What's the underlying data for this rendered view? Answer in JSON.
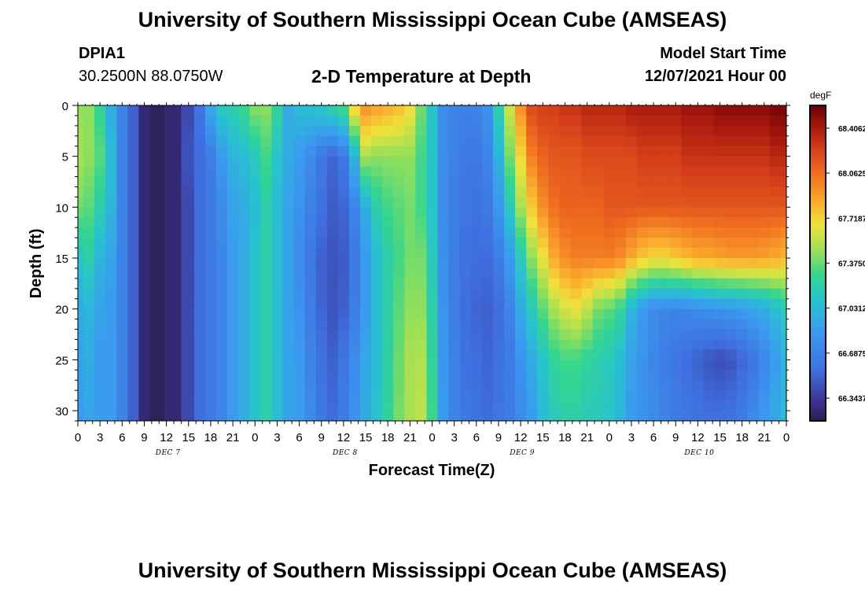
{
  "header": {
    "title": "University of Southern Mississippi Ocean Cube (AMSEAS)",
    "station": "DPIA1",
    "location": "30.2500N  88.0750W",
    "plot_title": "2-D Temperature at Depth",
    "model_start_label": "Model Start Time",
    "model_start_value": "12/07/2021 Hour 00"
  },
  "footer": {
    "title": "University of Southern Mississippi Ocean Cube (AMSEAS)"
  },
  "chart_data": {
    "type": "heatmap",
    "title": "2-D Temperature at Depth",
    "xlabel": "Forecast Time(Z)",
    "ylabel": "Depth (ft)",
    "x_tick_labels": [
      "0",
      "3",
      "6",
      "9",
      "12",
      "15",
      "18",
      "21",
      "0",
      "3",
      "6",
      "9",
      "12",
      "15",
      "18",
      "21",
      "0",
      "3",
      "6",
      "9",
      "12",
      "15",
      "18",
      "21",
      "0",
      "3",
      "6",
      "9",
      "12",
      "15",
      "18",
      "21",
      "0"
    ],
    "day_labels": [
      "DEC 7",
      "DEC 8",
      "DEC 9",
      "DEC 10"
    ],
    "y_tick_labels": [
      "0",
      "5",
      "10",
      "15",
      "20",
      "25",
      "30"
    ],
    "ylim": [
      0,
      31
    ],
    "x_range_hours": [
      0,
      96
    ],
    "colorbar": {
      "unit": "degF",
      "min": 66.17,
      "max": 68.58,
      "tick_labels": [
        "68.4062",
        "68.0625",
        "67.7187",
        "67.3750",
        "67.0312",
        "66.6875",
        "66.3437"
      ],
      "tick_values": [
        68.4062,
        68.0625,
        67.7187,
        67.375,
        67.0312,
        66.6875,
        66.3437
      ]
    },
    "depth_levels_ft": [
      0,
      5,
      10,
      15,
      20,
      25,
      31
    ],
    "profiles": [
      {
        "hour": 0,
        "values": [
          67.45,
          67.5,
          67.4,
          67.1,
          66.95,
          66.9,
          66.85
        ]
      },
      {
        "hour": 1.5,
        "values": [
          67.45,
          67.45,
          67.35,
          67.2,
          67.0,
          66.95,
          66.9
        ]
      },
      {
        "hour": 3,
        "values": [
          67.25,
          67.35,
          67.2,
          67.0,
          66.9,
          66.85,
          66.85
        ]
      },
      {
        "hour": 4.5,
        "values": [
          66.95,
          67.05,
          67.0,
          66.9,
          66.85,
          66.85,
          66.85
        ]
      },
      {
        "hour": 6,
        "values": [
          66.7,
          66.7,
          66.7,
          66.7,
          66.7,
          66.7,
          66.7
        ]
      },
      {
        "hour": 7.5,
        "values": [
          66.5,
          66.5,
          66.5,
          66.5,
          66.5,
          66.5,
          66.5
        ]
      },
      {
        "hour": 9,
        "values": [
          66.25,
          66.25,
          66.25,
          66.25,
          66.25,
          66.25,
          66.25
        ]
      },
      {
        "hour": 10.5,
        "values": [
          66.2,
          66.2,
          66.2,
          66.2,
          66.2,
          66.2,
          66.2
        ]
      },
      {
        "hour": 13,
        "values": [
          66.25,
          66.25,
          66.25,
          66.25,
          66.25,
          66.25,
          66.25
        ]
      },
      {
        "hour": 15,
        "values": [
          66.4,
          66.45,
          66.4,
          66.4,
          66.4,
          66.4,
          66.4
        ]
      },
      {
        "hour": 16.5,
        "values": [
          66.6,
          66.55,
          66.55,
          66.55,
          66.55,
          66.55,
          66.55
        ]
      },
      {
        "hour": 18,
        "values": [
          66.95,
          66.65,
          66.62,
          66.62,
          66.62,
          66.62,
          66.62
        ]
      },
      {
        "hour": 19.5,
        "values": [
          67.15,
          66.85,
          66.75,
          66.72,
          66.72,
          66.72,
          66.72
        ]
      },
      {
        "hour": 21,
        "values": [
          67.2,
          67.0,
          66.9,
          66.85,
          66.85,
          66.85,
          66.85
        ]
      },
      {
        "hour": 22.5,
        "values": [
          67.3,
          67.05,
          66.95,
          66.95,
          66.95,
          66.95,
          66.95
        ]
      },
      {
        "hour": 24,
        "values": [
          67.45,
          67.15,
          67.05,
          67.1,
          67.1,
          67.1,
          67.1
        ]
      },
      {
        "hour": 25.5,
        "values": [
          67.45,
          67.3,
          67.2,
          67.2,
          67.2,
          67.2,
          67.2
        ]
      },
      {
        "hour": 27,
        "values": [
          67.25,
          67.1,
          67.05,
          67.05,
          67.05,
          67.05,
          67.05
        ]
      },
      {
        "hour": 28.5,
        "values": [
          66.95,
          66.95,
          66.9,
          66.9,
          66.9,
          66.9,
          66.9
        ]
      },
      {
        "hour": 30,
        "values": [
          67.05,
          66.85,
          66.8,
          66.75,
          66.8,
          66.85,
          66.85
        ]
      },
      {
        "hour": 31.5,
        "values": [
          67.1,
          66.75,
          66.68,
          66.62,
          66.65,
          66.7,
          66.75
        ]
      },
      {
        "hour": 33,
        "values": [
          67.15,
          66.62,
          66.58,
          66.5,
          66.52,
          66.58,
          66.62
        ]
      },
      {
        "hour": 34.5,
        "values": [
          67.25,
          66.52,
          66.48,
          66.45,
          66.45,
          66.5,
          66.55
        ]
      },
      {
        "hour": 36,
        "values": [
          67.35,
          66.62,
          66.52,
          66.48,
          66.5,
          66.6,
          66.65
        ]
      },
      {
        "hour": 37.5,
        "values": [
          67.75,
          67.0,
          66.7,
          66.62,
          66.65,
          66.75,
          66.8
        ]
      },
      {
        "hour": 39,
        "values": [
          67.95,
          67.5,
          66.95,
          66.85,
          66.85,
          66.92,
          66.95
        ]
      },
      {
        "hour": 40.5,
        "values": [
          67.9,
          67.45,
          67.2,
          67.05,
          67.05,
          67.05,
          67.1
        ]
      },
      {
        "hour": 42,
        "values": [
          67.85,
          67.45,
          67.3,
          67.2,
          67.2,
          67.22,
          67.25
        ]
      },
      {
        "hour": 43.5,
        "values": [
          67.8,
          67.45,
          67.35,
          67.3,
          67.35,
          67.38,
          67.4
        ]
      },
      {
        "hour": 45,
        "values": [
          67.7,
          67.45,
          67.4,
          67.4,
          67.45,
          67.5,
          67.5
        ]
      },
      {
        "hour": 46.5,
        "values": [
          67.4,
          67.3,
          67.3,
          67.4,
          67.45,
          67.52,
          67.55
        ]
      },
      {
        "hour": 48,
        "values": [
          67.1,
          67.1,
          67.1,
          67.15,
          67.2,
          67.25,
          67.3
        ]
      },
      {
        "hour": 49.5,
        "values": [
          66.75,
          66.75,
          66.75,
          66.78,
          66.8,
          66.82,
          66.85
        ]
      },
      {
        "hour": 51,
        "values": [
          66.7,
          66.68,
          66.65,
          66.65,
          66.65,
          66.68,
          66.7
        ]
      },
      {
        "hour": 52.5,
        "values": [
          66.68,
          66.62,
          66.6,
          66.58,
          66.55,
          66.58,
          66.62
        ]
      },
      {
        "hour": 54,
        "values": [
          66.7,
          66.62,
          66.58,
          66.55,
          66.52,
          66.55,
          66.58
        ]
      },
      {
        "hour": 55.5,
        "values": [
          66.8,
          66.7,
          66.62,
          66.55,
          66.5,
          66.52,
          66.55
        ]
      },
      {
        "hour": 57,
        "values": [
          67.2,
          67.0,
          66.82,
          66.65,
          66.55,
          66.58,
          66.6
        ]
      },
      {
        "hour": 58.5,
        "values": [
          67.6,
          67.4,
          67.15,
          66.85,
          66.7,
          66.62,
          66.65
        ]
      },
      {
        "hour": 60,
        "values": [
          67.95,
          67.7,
          67.5,
          67.15,
          66.95,
          66.8,
          66.75
        ]
      },
      {
        "hour": 61.5,
        "values": [
          68.2,
          68.0,
          67.75,
          67.45,
          67.15,
          66.95,
          66.85
        ]
      },
      {
        "hour": 63,
        "values": [
          68.25,
          68.1,
          67.95,
          67.65,
          67.35,
          67.1,
          67.05
        ]
      },
      {
        "hour": 64.5,
        "values": [
          68.25,
          68.15,
          68.05,
          67.85,
          67.5,
          67.25,
          67.15
        ]
      },
      {
        "hour": 66,
        "values": [
          68.3,
          68.15,
          68.1,
          67.95,
          67.6,
          67.3,
          67.2
        ]
      },
      {
        "hour": 67.5,
        "values": [
          68.3,
          68.15,
          68.1,
          68.0,
          67.65,
          67.3,
          67.2
        ]
      },
      {
        "hour": 69,
        "values": [
          68.35,
          68.2,
          68.1,
          68.0,
          67.55,
          67.25,
          67.15
        ]
      },
      {
        "hour": 70.5,
        "values": [
          68.35,
          68.2,
          68.1,
          68.0,
          67.4,
          67.2,
          67.15
        ]
      },
      {
        "hour": 72,
        "values": [
          68.35,
          68.2,
          68.15,
          68.0,
          67.35,
          67.15,
          67.1
        ]
      },
      {
        "hour": 73.5,
        "values": [
          68.35,
          68.2,
          68.15,
          67.95,
          67.25,
          67.05,
          67.0
        ]
      },
      {
        "hour": 75,
        "values": [
          68.4,
          68.2,
          68.15,
          67.85,
          67.0,
          66.9,
          66.85
        ]
      },
      {
        "hour": 76.5,
        "values": [
          68.4,
          68.25,
          68.15,
          67.75,
          66.85,
          66.8,
          66.8
        ]
      },
      {
        "hour": 78,
        "values": [
          68.4,
          68.25,
          68.15,
          67.7,
          66.75,
          66.72,
          66.75
        ]
      },
      {
        "hour": 79.5,
        "values": [
          68.4,
          68.25,
          68.15,
          67.7,
          66.72,
          66.65,
          66.7
        ]
      },
      {
        "hour": 81,
        "values": [
          68.4,
          68.25,
          68.15,
          67.75,
          66.7,
          66.6,
          66.65
        ]
      },
      {
        "hour": 82.5,
        "values": [
          68.45,
          68.3,
          68.15,
          67.8,
          66.72,
          66.55,
          66.62
        ]
      },
      {
        "hour": 84,
        "values": [
          68.45,
          68.3,
          68.15,
          67.85,
          66.75,
          66.5,
          66.6
        ]
      },
      {
        "hour": 85.5,
        "values": [
          68.45,
          68.3,
          68.15,
          67.85,
          66.78,
          66.45,
          66.58
        ]
      },
      {
        "hour": 87,
        "values": [
          68.5,
          68.3,
          68.15,
          67.88,
          66.8,
          66.42,
          66.58
        ]
      },
      {
        "hour": 88.5,
        "values": [
          68.5,
          68.3,
          68.15,
          67.9,
          66.82,
          66.45,
          66.6
        ]
      },
      {
        "hour": 90,
        "values": [
          68.5,
          68.3,
          68.15,
          67.9,
          66.85,
          66.52,
          66.65
        ]
      },
      {
        "hour": 91.5,
        "values": [
          68.5,
          68.3,
          68.15,
          67.9,
          66.9,
          66.6,
          66.75
        ]
      },
      {
        "hour": 93,
        "values": [
          68.5,
          68.3,
          68.15,
          67.88,
          66.95,
          66.72,
          66.85
        ]
      },
      {
        "hour": 94.5,
        "values": [
          68.55,
          68.35,
          68.15,
          67.85,
          67.05,
          66.85,
          66.95
        ]
      },
      {
        "hour": 96,
        "values": [
          68.55,
          68.35,
          68.15,
          67.8,
          67.15,
          67.0,
          67.05
        ]
      }
    ]
  }
}
